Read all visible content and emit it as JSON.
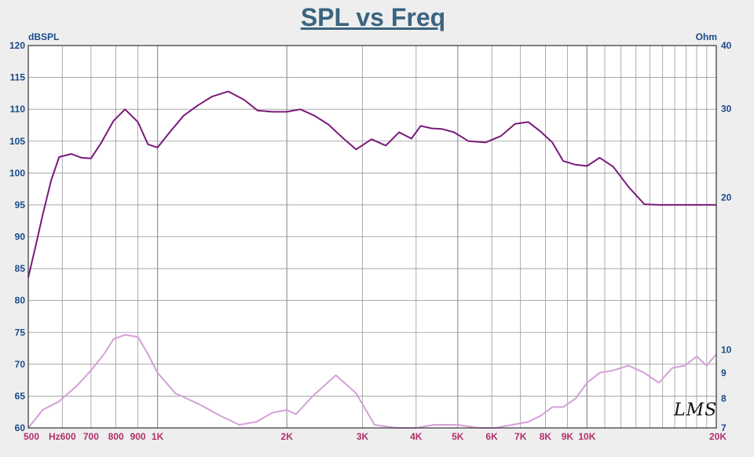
{
  "logo_text": "LMS",
  "chart_data": {
    "type": "line",
    "title": "SPL vs Freq",
    "ylabel_left": "dBSPL",
    "ylabel_right": "Ohm",
    "xscale": "log",
    "xlim": [
      500,
      20000
    ],
    "ylim_left": [
      60,
      120
    ],
    "ylim_right": [
      7,
      40
    ],
    "yscale_right": "log",
    "grid": true,
    "yticks_left": [
      "120",
      "115",
      "110",
      "105",
      "100",
      "95",
      "90",
      "85",
      "80",
      "75",
      "70",
      "65",
      "60"
    ],
    "yticks_right": [
      {
        "value": 40,
        "label": "40"
      },
      {
        "value": 30,
        "label": "30"
      },
      {
        "value": 20,
        "label": "20"
      },
      {
        "value": 10,
        "label": "10"
      },
      {
        "value": 9,
        "label": "9"
      },
      {
        "value": 8,
        "label": "8"
      },
      {
        "value": 7,
        "label": "7"
      }
    ],
    "xticks": [
      {
        "value": 500,
        "label": "500"
      },
      {
        "value": 600,
        "label": "Hz600"
      },
      {
        "value": 700,
        "label": "700"
      },
      {
        "value": 800,
        "label": "800"
      },
      {
        "value": 900,
        "label": "900"
      },
      {
        "value": 1000,
        "label": "1K"
      },
      {
        "value": 2000,
        "label": "2K"
      },
      {
        "value": 3000,
        "label": "3K"
      },
      {
        "value": 4000,
        "label": "4K"
      },
      {
        "value": 5000,
        "label": "5K"
      },
      {
        "value": 6000,
        "label": "6K"
      },
      {
        "value": 7000,
        "label": "7K"
      },
      {
        "value": 8000,
        "label": "8K"
      },
      {
        "value": 9000,
        "label": "9K"
      },
      {
        "value": 10000,
        "label": "10K"
      },
      {
        "value": 20000,
        "label": "20K"
      }
    ],
    "colors": {
      "spl": "#7a1a7a",
      "impedance": "#d4a0d8",
      "grid": "#999999",
      "plot_bg": "#ffffff",
      "tick_left": "#1a4a8a",
      "tick_x": "#b0306a"
    },
    "series": [
      {
        "axis": "left",
        "x": [
          500,
          520,
          540,
          565,
          590,
          630,
          665,
          700,
          740,
          790,
          840,
          900,
          950,
          1000,
          1070,
          1150,
          1240,
          1340,
          1460,
          1590,
          1710,
          1850,
          2000,
          2150,
          2320,
          2500,
          2700,
          2900,
          3150,
          3400,
          3650,
          3900,
          4100,
          4350,
          4600,
          4900,
          5300,
          5800,
          6300,
          6800,
          7300,
          7800,
          8300,
          8800,
          9400,
          10000,
          10700,
          11500,
          12500,
          13600,
          14700,
          15800,
          16900,
          18000,
          19000,
          20000
        ],
        "y": [
          83.6,
          88.5,
          93.4,
          98.8,
          102.5,
          103.0,
          102.4,
          102.3,
          104.8,
          108.2,
          110.0,
          108.0,
          104.5,
          104.0,
          106.5,
          109.0,
          110.6,
          112.0,
          112.8,
          111.5,
          109.8,
          109.6,
          109.6,
          110.0,
          109.0,
          107.6,
          105.5,
          103.7,
          105.3,
          104.3,
          106.4,
          105.4,
          107.4,
          107.0,
          106.9,
          106.4,
          105.0,
          104.8,
          105.8,
          107.7,
          108.0,
          106.5,
          104.8,
          101.9,
          101.3,
          101.1,
          102.4,
          101.0,
          97.8,
          95.1,
          95.0,
          95.0,
          95.0,
          95.0,
          95.0,
          95.0
        ]
      },
      {
        "axis": "right",
        "x": [
          500,
          540,
          590,
          650,
          700,
          750,
          790,
          840,
          900,
          950,
          1000,
          1100,
          1250,
          1400,
          1550,
          1700,
          1850,
          2000,
          2100,
          2300,
          2600,
          2900,
          3200,
          3600,
          4000,
          4400,
          5000,
          5600,
          6100,
          6700,
          7300,
          7800,
          8300,
          8800,
          9400,
          10000,
          10700,
          11500,
          12500,
          13600,
          14700,
          15800,
          16900,
          18000,
          19000,
          20000
        ],
        "y": [
          7.0,
          7.6,
          7.9,
          8.5,
          9.1,
          9.8,
          10.5,
          10.7,
          10.6,
          9.8,
          9.0,
          8.2,
          7.8,
          7.4,
          7.1,
          7.2,
          7.5,
          7.6,
          7.45,
          8.1,
          8.9,
          8.2,
          7.1,
          7.0,
          6.9,
          7.1,
          7.1,
          6.9,
          7.0,
          7.1,
          7.2,
          7.4,
          7.7,
          7.7,
          8.0,
          8.6,
          9.0,
          9.1,
          9.3,
          9.0,
          8.6,
          9.2,
          9.3,
          9.7,
          9.3,
          9.8
        ]
      }
    ]
  }
}
